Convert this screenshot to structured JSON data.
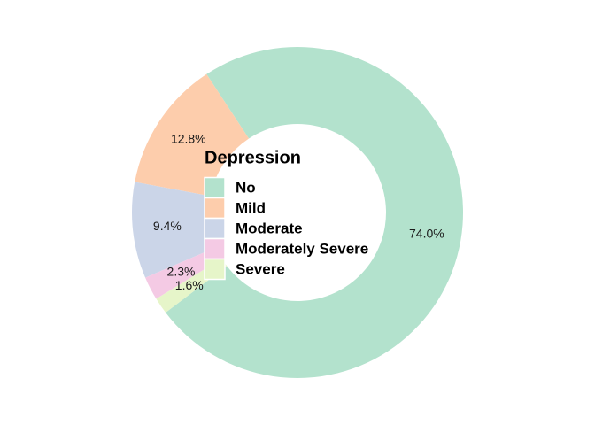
{
  "chart_data": {
    "type": "donut",
    "legend_title": "Depression",
    "categories": [
      "No",
      "Mild",
      "Moderate",
      "Moderately Severe",
      "Severe"
    ],
    "values": [
      74.0,
      12.8,
      9.4,
      2.3,
      1.6
    ],
    "value_labels": [
      "74.0%",
      "12.8%",
      "9.4%",
      "2.3%",
      "1.6%"
    ],
    "colors": [
      "#b3e2cd",
      "#fdcdac",
      "#cbd5e8",
      "#f4cae4",
      "#e6f5c9"
    ]
  }
}
